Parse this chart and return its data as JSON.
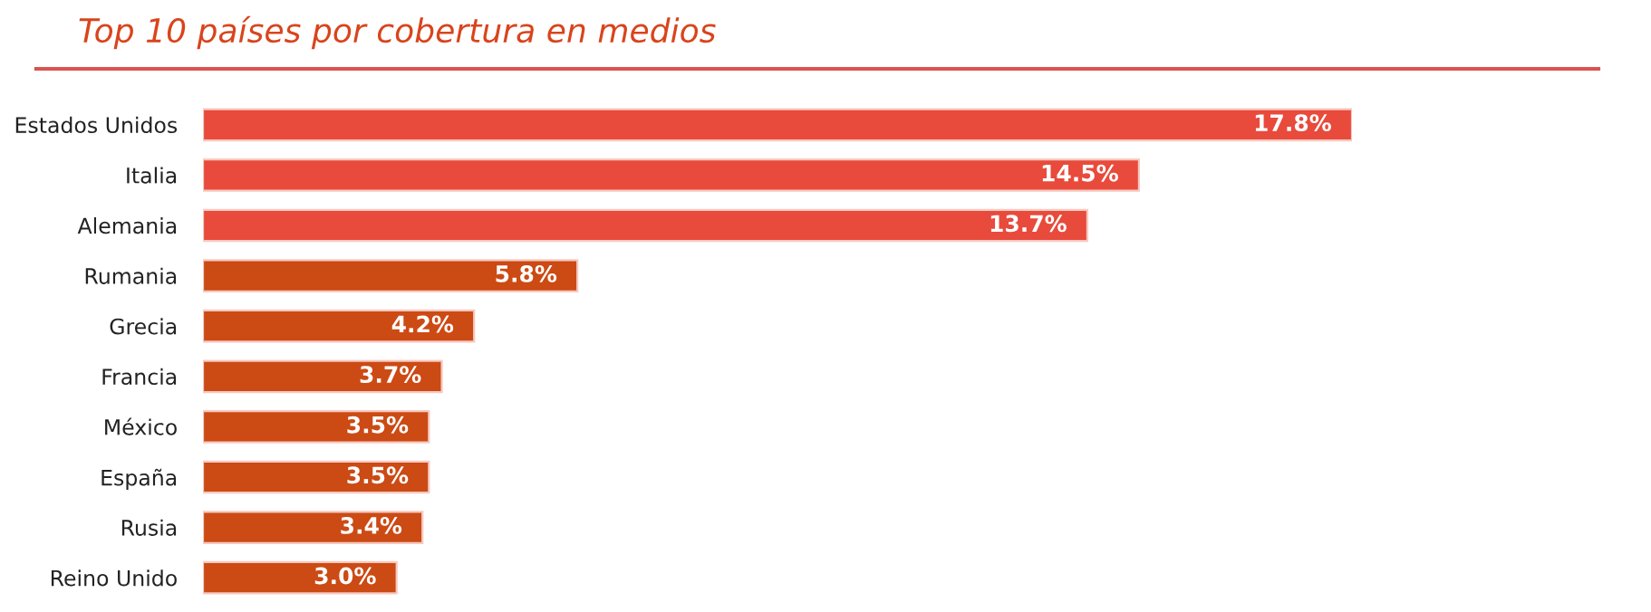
{
  "chart_data": {
    "type": "bar",
    "orientation": "horizontal",
    "title": "Top 10 países por cobertura en medios",
    "categories": [
      "Estados Unidos",
      "Italia",
      "Alemania",
      "Rumania",
      "Grecia",
      "Francia",
      "México",
      "España",
      "Rusia",
      "Reino Unido"
    ],
    "values": [
      17.8,
      14.5,
      13.7,
      5.8,
      4.2,
      3.7,
      3.5,
      3.5,
      3.4,
      3.0
    ],
    "value_labels": [
      "17.8%",
      "14.5%",
      "13.7%",
      "5.8%",
      "4.2%",
      "3.7%",
      "3.5%",
      "3.5%",
      "3.4%",
      "3.0%"
    ],
    "colors": [
      "#e84a3c",
      "#e84a3c",
      "#e84a3c",
      "#cc4a14",
      "#cc4a14",
      "#cc4a14",
      "#cc4a14",
      "#cc4a14",
      "#cc4a14",
      "#cc4a14"
    ],
    "tick_labels": "y",
    "grid": false,
    "legend": false
  }
}
